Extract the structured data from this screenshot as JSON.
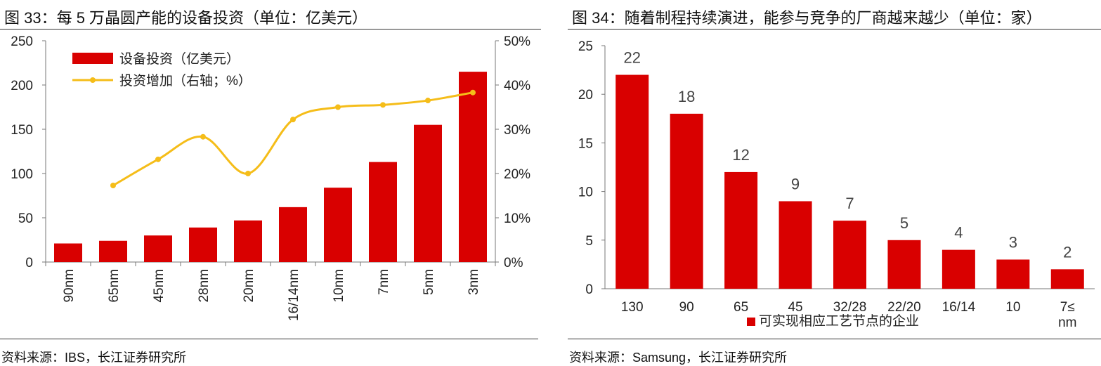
{
  "figures": [
    {
      "title": "图 33：每 5 万晶圆产能的设备投资（单位：亿美元）",
      "source": "资料来源：IBS，长江证券研究所"
    },
    {
      "title": "图 34：随着制程持续演进，能参与竞争的厂商越来越少（单位：家）",
      "source": "资料来源：Samsung，长江证券研究所"
    }
  ],
  "chart_data": [
    {
      "type": "bar",
      "categories": [
        "90nm",
        "65nm",
        "45nm",
        "28nm",
        "20nm",
        "16/14nm",
        "10nm",
        "7nm",
        "5nm",
        "3nm"
      ],
      "series": [
        {
          "name": "设备投资（亿美元）",
          "type": "bar",
          "axis": "left",
          "color": "#d90000",
          "values": [
            21,
            24,
            30,
            39,
            47,
            62,
            84,
            113,
            155,
            215
          ]
        },
        {
          "name": "投资增加（右轴；%）",
          "type": "line",
          "axis": "right",
          "color": "#f5bd19",
          "values": [
            null,
            17.3,
            23.2,
            28.3,
            20.0,
            32.2,
            35.0,
            35.5,
            36.5,
            38.3
          ]
        }
      ],
      "ylim": [
        0,
        250
      ],
      "yticks": [
        "0",
        "50",
        "100",
        "150",
        "200",
        "250"
      ],
      "y2lim": [
        0,
        50
      ],
      "y2ticks": [
        "0%",
        "10%",
        "20%",
        "30%",
        "40%",
        "50%"
      ],
      "legend": "top-left"
    },
    {
      "type": "bar",
      "categories": [
        "130",
        "90",
        "65",
        "45",
        "32/28",
        "22/20",
        "16/14",
        "10",
        "7≤\nnm"
      ],
      "series": [
        {
          "name": "可实现相应工艺节点的企业",
          "color": "#d90000",
          "values": [
            22,
            18,
            12,
            9,
            7,
            5,
            4,
            3,
            2
          ]
        }
      ],
      "data_labels": [
        "22",
        "18",
        "12",
        "9",
        "7",
        "5",
        "4",
        "3",
        "2"
      ],
      "ylim": [
        0,
        25
      ],
      "yticks": [
        "0",
        "5",
        "10",
        "15",
        "20",
        "25"
      ],
      "legend": "bottom"
    }
  ]
}
